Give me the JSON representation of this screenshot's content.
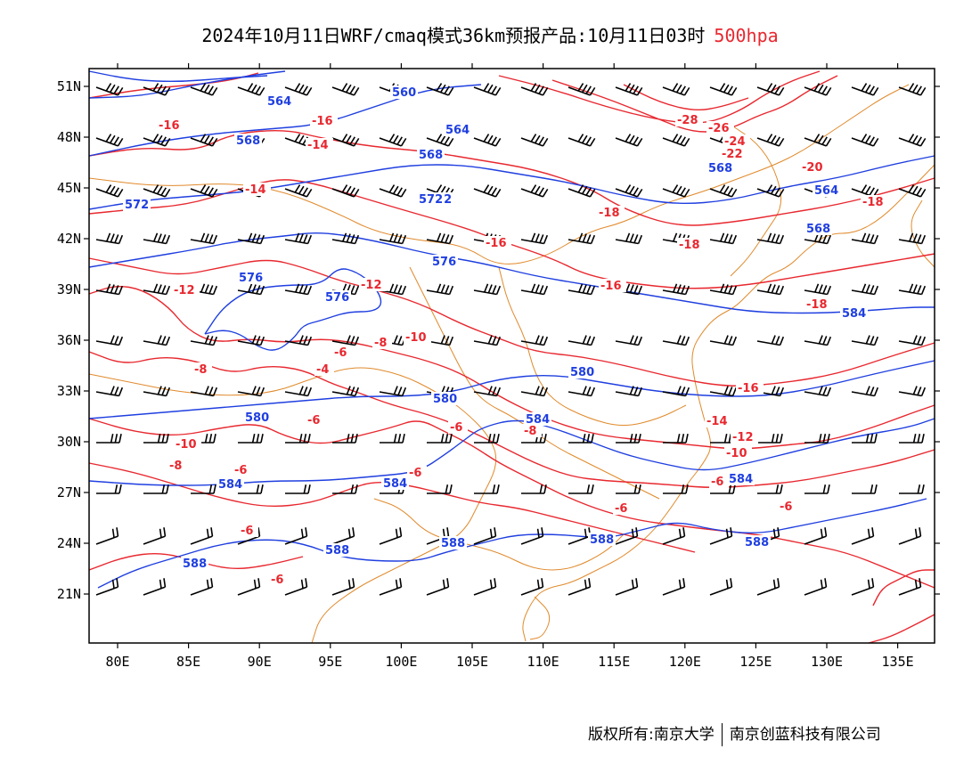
{
  "header": {
    "title": "2024年10月11日WRF/cmaq模式36km预报产品:10月11日03时",
    "level": "500hpa"
  },
  "axes": {
    "lat_labels": [
      "51N",
      "48N",
      "45N",
      "42N",
      "39N",
      "36N",
      "33N",
      "30N",
      "27N",
      "24N",
      "21N"
    ],
    "lon_labels": [
      "80E",
      "85E",
      "90E",
      "95E",
      "100E",
      "105E",
      "110E",
      "115E",
      "120E",
      "125E",
      "130E",
      "135E"
    ]
  },
  "contours": {
    "geopotential_color": "#1f3fe0",
    "temperature_color": "#e8282f",
    "coastline_color": "#e08a2c",
    "geopotential_labels": [
      "560",
      "564",
      "568",
      "572",
      "576",
      "580",
      "584",
      "588"
    ],
    "temperature_labels": [
      "-4",
      "-6",
      "-8",
      "-10",
      "-12",
      "-14",
      "-16",
      "-18",
      "-20",
      "-22",
      "-24",
      "-26",
      "-28"
    ]
  },
  "footer": {
    "copyright": "版权所有:南京大学",
    "company": "南京创蓝科技有限公司"
  }
}
